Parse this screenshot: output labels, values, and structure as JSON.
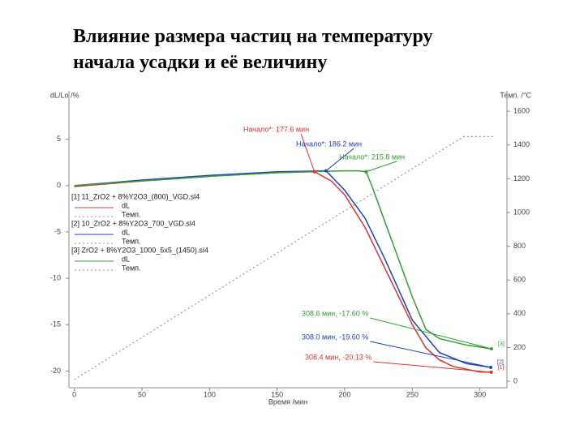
{
  "chart_data": {
    "type": "line",
    "title_lines": [
      "Влияние размера частиц на температуру",
      "начала усадки и её величину"
    ],
    "y_label": "dL/Lo /%",
    "y2_label": "Темп. /°C",
    "x_label": "Время /мин",
    "xlim": [
      -4,
      320
    ],
    "xticks": [
      0,
      50,
      100,
      150,
      200,
      250,
      300
    ],
    "ylim": [
      -21.8,
      9.7
    ],
    "yticks": [
      5,
      0,
      -5,
      -10,
      -15,
      -20
    ],
    "y2lim": [
      -38,
      1692
    ],
    "y2ticks": [
      0,
      200,
      400,
      600,
      800,
      1000,
      1200,
      1400,
      1600
    ],
    "series": [
      {
        "name": "[1] 11_ZrO2 + 8%Y2O3_(800)_VGD.sl4",
        "end_label": "[1]",
        "color": "#e03030",
        "x": [
          0,
          50,
          100,
          150,
          177.6,
          190,
          200,
          215,
          230,
          250,
          260,
          270,
          280,
          300,
          308.4
        ],
        "values": [
          -0.1,
          0.5,
          1.0,
          1.4,
          1.5,
          0.5,
          -1,
          -4.5,
          -9,
          -15,
          -17.5,
          -18.8,
          -19.5,
          -20.1,
          -20.13
        ]
      },
      {
        "name": "[2] 10_ZrO2 + 8%Y2O3_700_VGD.sl4",
        "end_label": "[2]",
        "color": "#2040c0",
        "x": [
          0,
          50,
          100,
          150,
          186.2,
          200,
          215,
          230,
          250,
          270,
          290,
          308
        ],
        "values": [
          0,
          0.6,
          1.1,
          1.5,
          1.6,
          -0.5,
          -3.5,
          -8,
          -14.5,
          -18,
          -19.2,
          -19.6
        ]
      },
      {
        "name": "[3] ZrO2 + 8%Y2O3_1000_5x5_(1450).sl4",
        "end_label": "[3]",
        "color": "#30a030",
        "x": [
          0,
          50,
          100,
          150,
          200,
          210,
          215.8,
          220,
          230,
          240,
          250,
          260,
          270,
          290,
          308.6
        ],
        "values": [
          0,
          0.5,
          1.0,
          1.4,
          1.6,
          1.6,
          1.5,
          0,
          -4,
          -8,
          -12,
          -15.5,
          -16.5,
          -17.2,
          -17.6
        ]
      }
    ],
    "temperature": {
      "name": "Темп.",
      "axis": "y2",
      "color": "#999999",
      "x": [
        0,
        288,
        310
      ],
      "values": [
        10,
        1450,
        1450
      ]
    },
    "legend_rows": [
      "dL",
      "Темп."
    ],
    "annotations": [
      {
        "text": "Начало*: 177.6 мин",
        "color": "#e03030",
        "x": 177.6,
        "y": 1.5
      },
      {
        "text": "Начало*: 186.2 мин",
        "color": "#2040c0",
        "x": 186.2,
        "y": 1.6
      },
      {
        "text": "Начало*: 215.8 мин",
        "color": "#30a030",
        "x": 215.8,
        "y": 1.5
      },
      {
        "text": "308.6 мин, -17.60 %",
        "color": "#30a030",
        "x": 308.6,
        "y": -17.6
      },
      {
        "text": "308.0 мин, -19.60 %",
        "color": "#2040c0",
        "x": 308,
        "y": -19.6
      },
      {
        "text": "308.4 мин, -20.13 %",
        "color": "#e03030",
        "x": 308.4,
        "y": -20.13
      }
    ]
  }
}
